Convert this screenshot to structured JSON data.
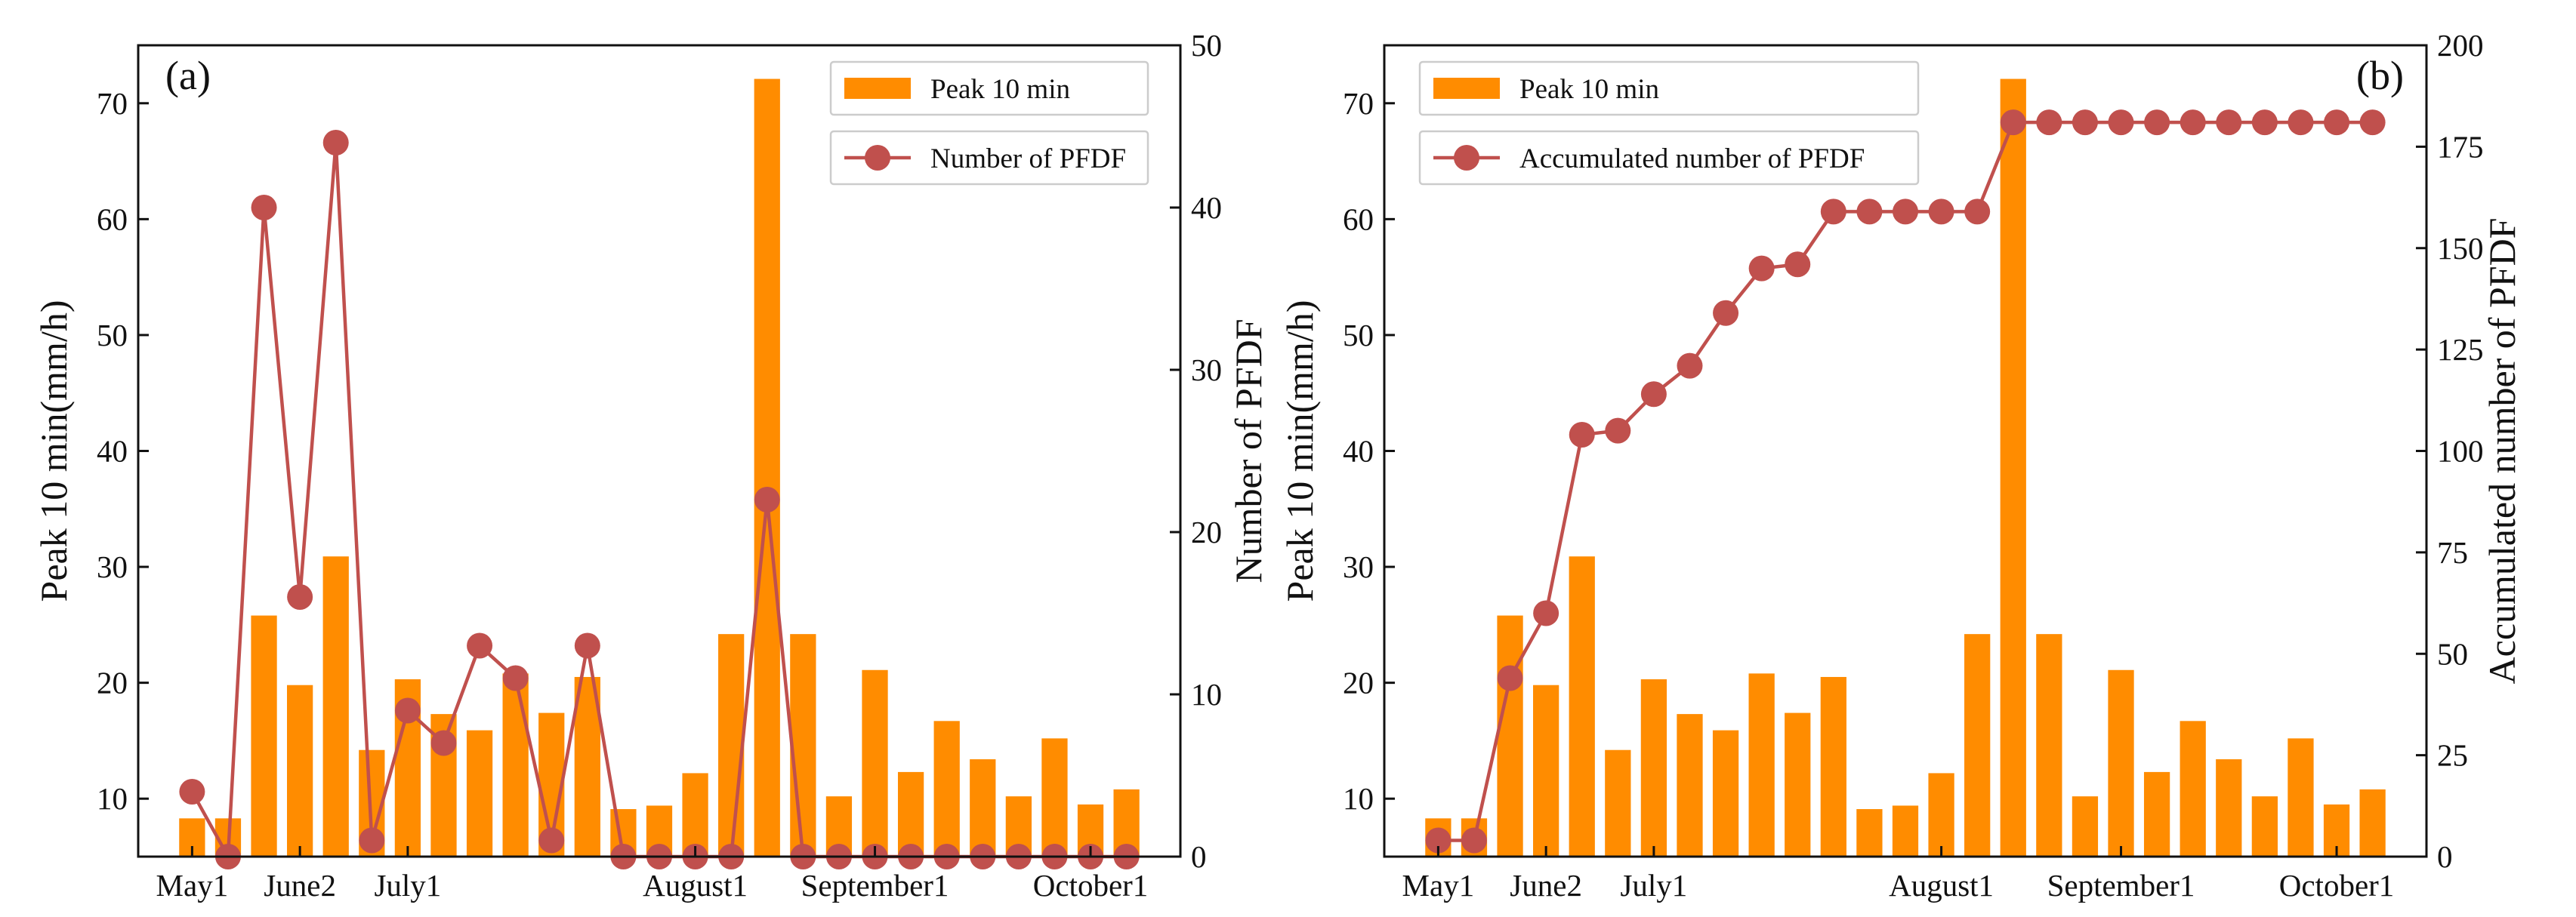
{
  "figure": {
    "colors": {
      "bar": "#ff8c00",
      "line": "#c0504d",
      "axis": "#111111",
      "legend_border": "#cccccc"
    }
  },
  "chart_data": [
    {
      "type": "bar+line",
      "panel_label": "(a)",
      "x_tick_labels": [
        "May1",
        "June2",
        "July1",
        "August1",
        "September1",
        "October1"
      ],
      "x_tick_positions": [
        1,
        4,
        7,
        15,
        20,
        26
      ],
      "bars": {
        "name": "Peak 10 min",
        "x": [
          1,
          2,
          3,
          4,
          5,
          6,
          7,
          8,
          9,
          10,
          11,
          12,
          13,
          14,
          15,
          16,
          17,
          18,
          19,
          20,
          21,
          22,
          23,
          24,
          25,
          26,
          27
        ],
        "values": [
          8.3,
          8.3,
          25.8,
          19.8,
          30.9,
          14.2,
          20.3,
          17.3,
          15.9,
          20.8,
          17.4,
          20.5,
          9.1,
          9.4,
          12.2,
          24.2,
          72.1,
          24.2,
          10.2,
          21.1,
          12.3,
          16.7,
          13.4,
          10.2,
          15.2,
          9.5,
          10.8
        ]
      },
      "line": {
        "name": "Number of PFDF",
        "x": [
          1,
          2,
          3,
          4,
          5,
          6,
          7,
          8,
          9,
          10,
          11,
          12,
          13,
          14,
          15,
          16,
          17,
          18,
          19,
          20,
          21,
          22,
          23,
          24,
          25,
          26,
          27
        ],
        "values": [
          4,
          0,
          40,
          16,
          44,
          1,
          9,
          7,
          13,
          11,
          1,
          13,
          0,
          0,
          0,
          0,
          22,
          0,
          0,
          0,
          0,
          0,
          0,
          0,
          0,
          0,
          0
        ]
      },
      "ylabel": "Peak 10 min(mm/h)",
      "ylim": [
        5,
        75
      ],
      "y_ticks": [
        10,
        20,
        30,
        40,
        50,
        60,
        70
      ],
      "y2label": "Number of PFDF",
      "y2lim": [
        0,
        50
      ],
      "y2_ticks": [
        0,
        10,
        20,
        30,
        40,
        50
      ],
      "xlim": [
        -0.5,
        28.5
      ],
      "legend": [
        "Peak 10 min",
        "Number of PFDF"
      ],
      "legend_loc": "top-right"
    },
    {
      "type": "bar+line",
      "panel_label": "(b)",
      "x_tick_labels": [
        "May1",
        "June2",
        "July1",
        "August1",
        "September1",
        "October1"
      ],
      "x_tick_positions": [
        1,
        4,
        7,
        15,
        20,
        26
      ],
      "bars": {
        "name": "Peak 10 min",
        "x": [
          1,
          2,
          3,
          4,
          5,
          6,
          7,
          8,
          9,
          10,
          11,
          12,
          13,
          14,
          15,
          16,
          17,
          18,
          19,
          20,
          21,
          22,
          23,
          24,
          25,
          26,
          27
        ],
        "values": [
          8.3,
          8.3,
          25.8,
          19.8,
          30.9,
          14.2,
          20.3,
          17.3,
          15.9,
          20.8,
          17.4,
          20.5,
          9.1,
          9.4,
          12.2,
          24.2,
          72.1,
          24.2,
          10.2,
          21.1,
          12.3,
          16.7,
          13.4,
          10.2,
          15.2,
          9.5,
          10.8
        ]
      },
      "line": {
        "name": "Accumulated number of PFDF",
        "x": [
          1,
          2,
          3,
          4,
          5,
          6,
          7,
          8,
          9,
          10,
          11,
          12,
          13,
          14,
          15,
          16,
          17,
          18,
          19,
          20,
          21,
          22,
          23,
          24,
          25,
          26,
          27
        ],
        "values": [
          4,
          4,
          44,
          60,
          104,
          105,
          114,
          121,
          134,
          145,
          146,
          159,
          159,
          159,
          159,
          159,
          181,
          181,
          181,
          181,
          181,
          181,
          181,
          181,
          181,
          181,
          181
        ]
      },
      "ylabel": "Peak 10 min(mm/h)",
      "ylim": [
        5,
        75
      ],
      "y_ticks": [
        10,
        20,
        30,
        40,
        50,
        60,
        70
      ],
      "y2label": "Accumulated number of PFDF",
      "y2lim": [
        0,
        200
      ],
      "y2_ticks": [
        0,
        25,
        50,
        75,
        100,
        125,
        150,
        175,
        200
      ],
      "xlim": [
        -0.5,
        28.5
      ],
      "legend": [
        "Peak 10 min",
        "Accumulated number of PFDF"
      ],
      "legend_loc": "top-left"
    }
  ]
}
